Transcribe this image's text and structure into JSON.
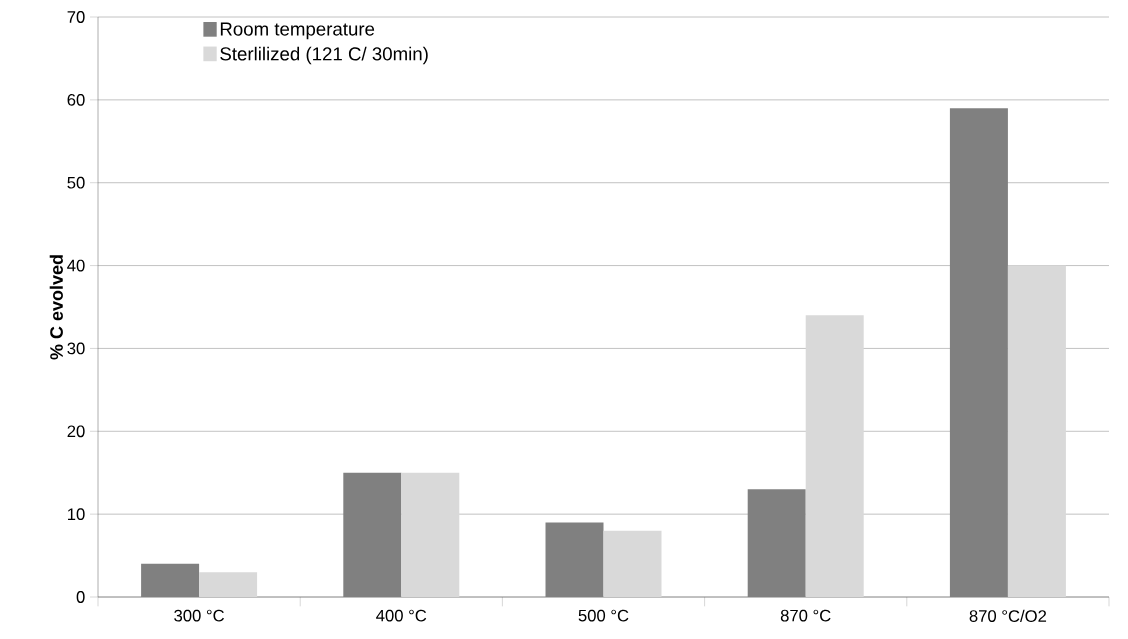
{
  "chart_data": {
    "type": "bar",
    "ylabel": "% C evolved",
    "categories": [
      "300 °C",
      "400 °C",
      "500 °C",
      "870 °C",
      "870 °C/O2"
    ],
    "series": [
      {
        "name": "Room temperature",
        "color": "#808080",
        "values": [
          4,
          15,
          9,
          13,
          59
        ]
      },
      {
        "name": "Sterlilized (121 C/ 30min)",
        "color": "#d9d9d9",
        "values": [
          3,
          15,
          8,
          34,
          40
        ]
      }
    ],
    "ylim": [
      0,
      70
    ],
    "yticks": [
      0,
      10,
      20,
      30,
      40,
      50,
      60,
      70
    ],
    "grid": "y",
    "legend": "top left"
  }
}
